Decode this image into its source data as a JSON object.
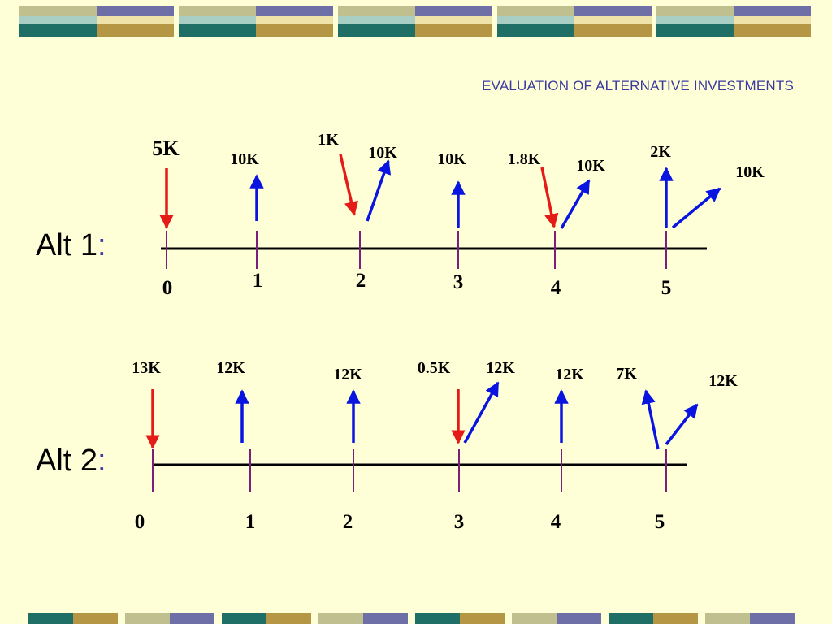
{
  "title": "EVALUATION OF ALTERNATIVE INVESTMENTS",
  "colors": {
    "background": "#ffffd7",
    "outflow_arrow": "#e41b17",
    "inflow_arrow": "#0a14e0",
    "tick": "#7b1f7b",
    "band_teal": "#1f6f67",
    "band_gold": "#b59645",
    "band_purple": "#6f6fa8",
    "band_olive": "#bfbf8f"
  },
  "alt1": {
    "label": "Alt 1",
    "colon": ":",
    "periods": [
      "0",
      "1",
      "2",
      "3",
      "4",
      "5"
    ],
    "cash_flows": [
      {
        "period": 0,
        "direction": "out",
        "amount": "5K"
      },
      {
        "period": 1,
        "direction": "in",
        "amount": "10K"
      },
      {
        "period": 2,
        "direction": "out",
        "amount": "1K"
      },
      {
        "period": 2,
        "direction": "in",
        "amount": "10K"
      },
      {
        "period": 3,
        "direction": "in",
        "amount": "10K"
      },
      {
        "period": 4,
        "direction": "out",
        "amount": "1.8K"
      },
      {
        "period": 4,
        "direction": "in",
        "amount": "10K"
      },
      {
        "period": 5,
        "direction": "in",
        "amount": "2K"
      },
      {
        "period": 5,
        "direction": "in",
        "amount": "10K"
      }
    ]
  },
  "alt2": {
    "label": "Alt 2",
    "colon": ":",
    "periods": [
      "0",
      "1",
      "2",
      "3",
      "4",
      "5"
    ],
    "cash_flows": [
      {
        "period": 0,
        "direction": "out",
        "amount": "13K"
      },
      {
        "period": 1,
        "direction": "in",
        "amount": "12K"
      },
      {
        "period": 2,
        "direction": "in",
        "amount": "12K"
      },
      {
        "period": 3,
        "direction": "out",
        "amount": "0.5K"
      },
      {
        "period": 3,
        "direction": "in",
        "amount": "12K"
      },
      {
        "period": 4,
        "direction": "in",
        "amount": "12K"
      },
      {
        "period": 5,
        "direction": "in",
        "amount": "7K"
      },
      {
        "period": 5,
        "direction": "in",
        "amount": "12K"
      }
    ]
  }
}
